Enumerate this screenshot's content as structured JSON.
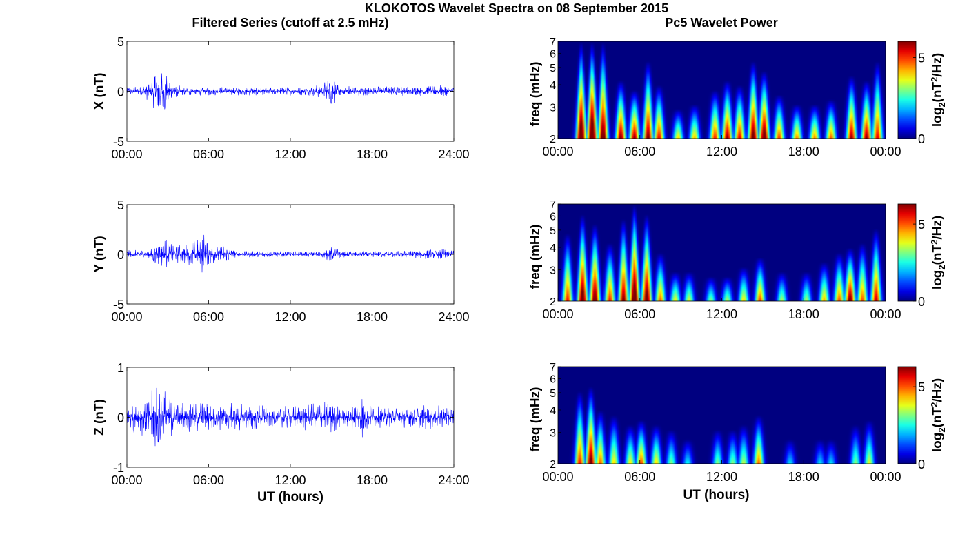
{
  "figure": {
    "title": "KLOKOTOS Wavelet Spectra on 08 September 2015",
    "left_column_title": "Filtered Series (cutoff at 2.5 mHz)",
    "right_column_title": "Pc5 Wavelet Power"
  },
  "chart_data": [
    {
      "type": "line",
      "panel": "X",
      "ylabel": "X (nT)",
      "xlabel": "",
      "ylim": [
        -5,
        5
      ],
      "yticks": [
        "5",
        "0",
        "-5"
      ],
      "xlim": [
        0,
        24
      ],
      "xticks": [
        "00:00",
        "06:00",
        "12:00",
        "18:00",
        "24:00"
      ],
      "color": "#0000ff",
      "envelope": {
        "hours": [
          0,
          1,
          1.8,
          2.0,
          2.3,
          2.6,
          2.9,
          3.3,
          4,
          6,
          8,
          11,
          13,
          14.2,
          14.8,
          15.0,
          15.4,
          16,
          18,
          21,
          23,
          24
        ],
        "amplitude_nT": [
          0.5,
          0.5,
          1.2,
          2.0,
          2.8,
          3.0,
          2.0,
          0.9,
          0.5,
          0.45,
          0.45,
          0.4,
          0.45,
          0.7,
          1.3,
          2.0,
          0.9,
          0.55,
          0.5,
          0.55,
          0.6,
          0.5
        ]
      }
    },
    {
      "type": "line",
      "panel": "Y",
      "ylabel": "Y (nT)",
      "xlabel": "",
      "ylim": [
        -5,
        5
      ],
      "yticks": [
        "5",
        "0",
        "-5"
      ],
      "xlim": [
        0,
        24
      ],
      "xticks": [
        "00:00",
        "06:00",
        "12:00",
        "18:00",
        "24:00"
      ],
      "color": "#0000ff",
      "envelope": {
        "hours": [
          0,
          1.5,
          2.3,
          2.8,
          3.5,
          4.3,
          4.9,
          5.3,
          5.6,
          6.0,
          6.5,
          7.2,
          8,
          10,
          14,
          15.0,
          16,
          20,
          23.5,
          24
        ],
        "amplitude_nT": [
          0.4,
          0.5,
          1.4,
          1.8,
          0.8,
          1.2,
          1.6,
          2.0,
          2.4,
          1.2,
          1.2,
          1.0,
          0.35,
          0.3,
          0.3,
          0.8,
          0.3,
          0.35,
          0.6,
          0.4
        ]
      }
    },
    {
      "type": "line",
      "panel": "Z",
      "ylabel": "Z (nT)",
      "xlabel": "UT (hours)",
      "ylim": [
        -1,
        1
      ],
      "yticks": [
        "1",
        "0",
        "-1"
      ],
      "xlim": [
        0,
        24
      ],
      "xticks": [
        "00:00",
        "06:00",
        "12:00",
        "18:00",
        "24:00"
      ],
      "color": "#0000ff",
      "envelope": {
        "hours": [
          0,
          1,
          1.8,
          2.2,
          2.6,
          3.0,
          3.6,
          4.5,
          5.5,
          6.5,
          8,
          10,
          11,
          12,
          14,
          15.0,
          16,
          17.0,
          17.3,
          17.6,
          19,
          22,
          24
        ],
        "amplitude_nT": [
          0.3,
          0.35,
          0.55,
          0.8,
          0.75,
          0.5,
          0.35,
          0.3,
          0.35,
          0.3,
          0.3,
          0.25,
          0.18,
          0.25,
          0.3,
          0.35,
          0.2,
          0.3,
          0.55,
          0.25,
          0.2,
          0.25,
          0.22
        ]
      }
    },
    {
      "type": "heatmap",
      "panel": "X",
      "ylabel": "freq (mHz)",
      "xlabel": "",
      "yscale": "log",
      "ylim": [
        2,
        7
      ],
      "yticks": [
        "2",
        "3",
        "4",
        "5",
        "6",
        "7"
      ],
      "xlim": [
        0,
        24
      ],
      "xticks": [
        "00:00",
        "06:00",
        "12:00",
        "18:00",
        "00:00"
      ],
      "colorbar": {
        "label": "log2(nT^2/Hz)",
        "ticks": [
          "0",
          "5"
        ],
        "range": [
          0,
          6
        ],
        "colormap": "jet"
      },
      "bursts": [
        {
          "t": 1.7,
          "level": 7.2,
          "reach": 1.0
        },
        {
          "t": 2.5,
          "level": 7.5,
          "reach": 1.0
        },
        {
          "t": 3.3,
          "level": 6.8,
          "reach": 1.0
        },
        {
          "t": 4.6,
          "level": 6.2,
          "reach": 0.6
        },
        {
          "t": 5.6,
          "level": 6.0,
          "reach": 0.5
        },
        {
          "t": 6.6,
          "level": 6.2,
          "reach": 0.8
        },
        {
          "t": 7.4,
          "level": 5.5,
          "reach": 0.55
        },
        {
          "t": 8.8,
          "level": 4.0,
          "reach": 0.3
        },
        {
          "t": 10.0,
          "level": 4.2,
          "reach": 0.35
        },
        {
          "t": 11.5,
          "level": 5.2,
          "reach": 0.5
        },
        {
          "t": 12.4,
          "level": 6.0,
          "reach": 0.6
        },
        {
          "t": 13.3,
          "level": 5.5,
          "reach": 0.55
        },
        {
          "t": 14.3,
          "level": 6.5,
          "reach": 0.8
        },
        {
          "t": 15.1,
          "level": 6.8,
          "reach": 0.7
        },
        {
          "t": 16.2,
          "level": 5.0,
          "reach": 0.45
        },
        {
          "t": 17.5,
          "level": 4.5,
          "reach": 0.35
        },
        {
          "t": 18.8,
          "level": 4.5,
          "reach": 0.35
        },
        {
          "t": 20.0,
          "level": 4.8,
          "reach": 0.4
        },
        {
          "t": 21.5,
          "level": 6.0,
          "reach": 0.65
        },
        {
          "t": 22.6,
          "level": 6.0,
          "reach": 0.6
        },
        {
          "t": 23.4,
          "level": 5.5,
          "reach": 0.8
        }
      ]
    },
    {
      "type": "heatmap",
      "panel": "Y",
      "ylabel": "freq (mHz)",
      "xlabel": "",
      "yscale": "log",
      "ylim": [
        2,
        7
      ],
      "yticks": [
        "2",
        "3",
        "4",
        "5",
        "6",
        "7"
      ],
      "xlim": [
        0,
        24
      ],
      "xticks": [
        "00:00",
        "06:00",
        "12:00",
        "18:00",
        "00:00"
      ],
      "colorbar": {
        "label": "log2(nT^2/Hz)",
        "ticks": [
          "0",
          "5"
        ],
        "range": [
          0,
          6.3
        ],
        "colormap": "jet"
      },
      "bursts": [
        {
          "t": 0.7,
          "level": 5.5,
          "reach": 0.7
        },
        {
          "t": 1.8,
          "level": 7.2,
          "reach": 0.9
        },
        {
          "t": 2.7,
          "level": 7.0,
          "reach": 0.8
        },
        {
          "t": 3.8,
          "level": 5.5,
          "reach": 0.6
        },
        {
          "t": 4.8,
          "level": 6.5,
          "reach": 0.85
        },
        {
          "t": 5.6,
          "level": 7.5,
          "reach": 1.0
        },
        {
          "t": 6.5,
          "level": 7.0,
          "reach": 0.9
        },
        {
          "t": 7.5,
          "level": 5.0,
          "reach": 0.5
        },
        {
          "t": 8.6,
          "level": 4.0,
          "reach": 0.3
        },
        {
          "t": 9.6,
          "level": 3.8,
          "reach": 0.3
        },
        {
          "t": 11.2,
          "level": 3.2,
          "reach": 0.25
        },
        {
          "t": 12.4,
          "level": 3.5,
          "reach": 0.25
        },
        {
          "t": 13.6,
          "level": 4.2,
          "reach": 0.35
        },
        {
          "t": 14.8,
          "level": 5.2,
          "reach": 0.45
        },
        {
          "t": 16.4,
          "level": 3.5,
          "reach": 0.3
        },
        {
          "t": 18.2,
          "level": 3.5,
          "reach": 0.3
        },
        {
          "t": 19.5,
          "level": 4.5,
          "reach": 0.4
        },
        {
          "t": 20.6,
          "level": 5.2,
          "reach": 0.5
        },
        {
          "t": 21.4,
          "level": 6.8,
          "reach": 0.55
        },
        {
          "t": 22.3,
          "level": 5.2,
          "reach": 0.6
        },
        {
          "t": 23.3,
          "level": 6.0,
          "reach": 0.75
        }
      ]
    },
    {
      "type": "heatmap",
      "panel": "Z",
      "ylabel": "freq (mHz)",
      "xlabel": "UT (hours)",
      "yscale": "log",
      "ylim": [
        2,
        7
      ],
      "yticks": [
        "2",
        "3",
        "4",
        "5",
        "6",
        "7"
      ],
      "xlim": [
        0,
        24
      ],
      "xticks": [
        "00:00",
        "06:00",
        "12:00",
        "18:00",
        "00:00"
      ],
      "colorbar": {
        "label": "log2(nT^2/Hz)",
        "ticks": [
          "0",
          "5"
        ],
        "range": [
          0,
          6.3
        ],
        "colormap": "jet"
      },
      "bursts": [
        {
          "t": 1.6,
          "level": 5.5,
          "reach": 0.75
        },
        {
          "t": 2.4,
          "level": 6.8,
          "reach": 0.8
        },
        {
          "t": 3.1,
          "level": 5.0,
          "reach": 0.55
        },
        {
          "t": 4.1,
          "level": 4.2,
          "reach": 0.5
        },
        {
          "t": 5.3,
          "level": 4.0,
          "reach": 0.4
        },
        {
          "t": 6.1,
          "level": 5.2,
          "reach": 0.45
        },
        {
          "t": 7.2,
          "level": 4.2,
          "reach": 0.4
        },
        {
          "t": 8.3,
          "level": 3.2,
          "reach": 0.35
        },
        {
          "t": 9.5,
          "level": 2.4,
          "reach": 0.25
        },
        {
          "t": 11.7,
          "level": 3.2,
          "reach": 0.35
        },
        {
          "t": 12.8,
          "level": 3.2,
          "reach": 0.35
        },
        {
          "t": 13.6,
          "level": 3.6,
          "reach": 0.4
        },
        {
          "t": 14.7,
          "level": 5.0,
          "reach": 0.5
        },
        {
          "t": 17.0,
          "level": 2.2,
          "reach": 0.25
        },
        {
          "t": 19.2,
          "level": 2.2,
          "reach": 0.25
        },
        {
          "t": 20.0,
          "level": 2.2,
          "reach": 0.25
        },
        {
          "t": 21.8,
          "level": 3.2,
          "reach": 0.4
        },
        {
          "t": 22.8,
          "level": 3.8,
          "reach": 0.45
        }
      ]
    }
  ]
}
